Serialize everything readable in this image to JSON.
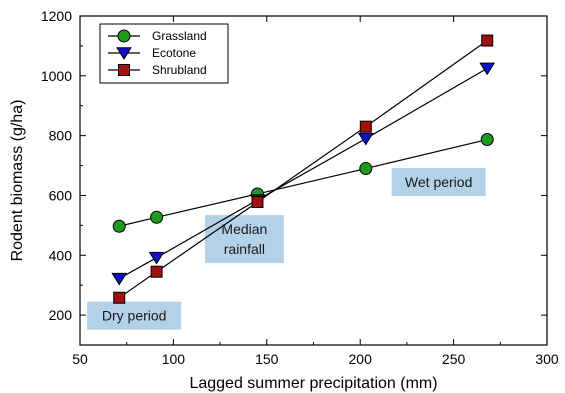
{
  "chart_data": {
    "type": "line",
    "xlabel": "Lagged summer precipitation (mm)",
    "ylabel": "Rodent biomass (g/ha)",
    "xlim": [
      50,
      300
    ],
    "ylim": [
      100,
      1200
    ],
    "xticks": [
      50,
      100,
      150,
      200,
      250,
      300
    ],
    "yticks": [
      200,
      400,
      600,
      800,
      1000,
      1200
    ],
    "grid": false,
    "legend_position": "top-left",
    "series": [
      {
        "name": "Grassland",
        "marker": "circle",
        "color": "#1f9a1f",
        "x": [
          71,
          91,
          145,
          203,
          268
        ],
        "y": [
          497,
          527,
          605,
          690,
          787
        ]
      },
      {
        "name": "Ecotone",
        "marker": "triangle-down",
        "color": "#1010c8",
        "x": [
          71,
          91,
          145,
          203,
          268
        ],
        "y": [
          322,
          392,
          585,
          790,
          1025
        ]
      },
      {
        "name": "Shrubland",
        "marker": "square",
        "color": "#a01010",
        "x": [
          71,
          91,
          145,
          203,
          268
        ],
        "y": [
          258,
          345,
          578,
          830,
          1118
        ]
      }
    ],
    "annotations": [
      {
        "text": [
          "Dry period"
        ],
        "x": 79,
        "y": 198
      },
      {
        "text": [
          "Median",
          "rainfall"
        ],
        "x": 138,
        "y": 454
      },
      {
        "text": [
          "Wet period"
        ],
        "x": 242,
        "y": 645
      }
    ]
  }
}
